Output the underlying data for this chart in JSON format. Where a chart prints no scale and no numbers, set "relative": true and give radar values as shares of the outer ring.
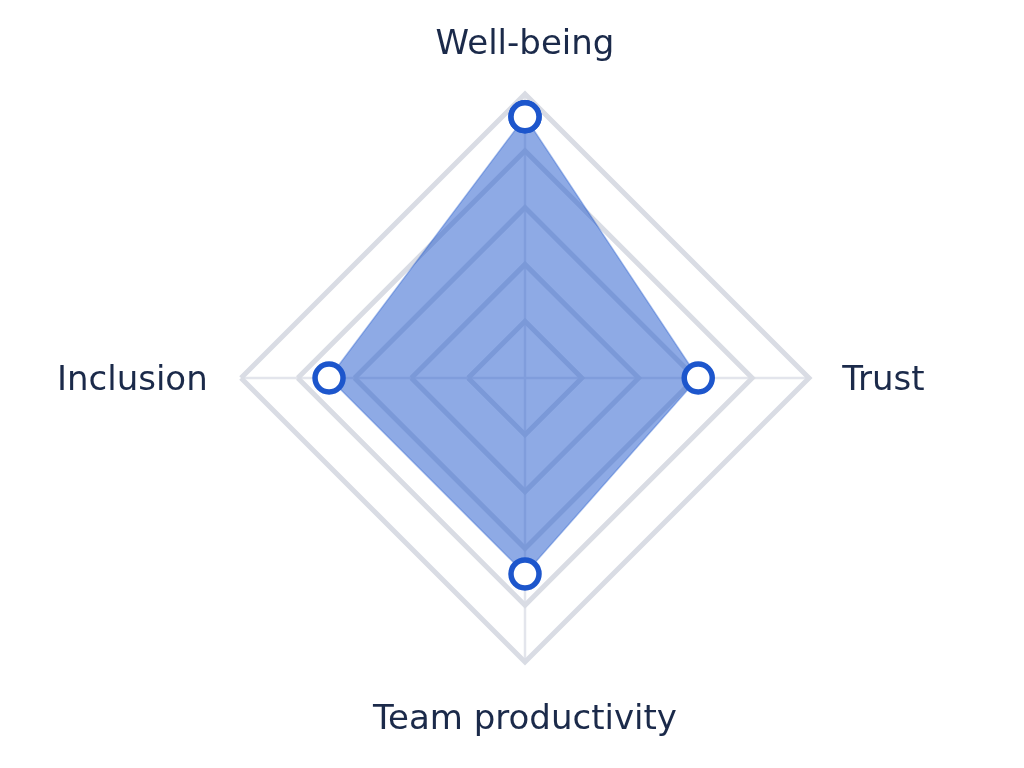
{
  "chart_data": {
    "type": "radar",
    "categories": [
      "Well-being",
      "Trust",
      "Team productivity",
      "Inclusion"
    ],
    "relative": true,
    "series": [
      {
        "color": "#1d56cc",
        "values": [
          0.92,
          0.61,
          0.69,
          0.69
        ]
      }
    ],
    "marker": "circle",
    "grid": true
  }
}
